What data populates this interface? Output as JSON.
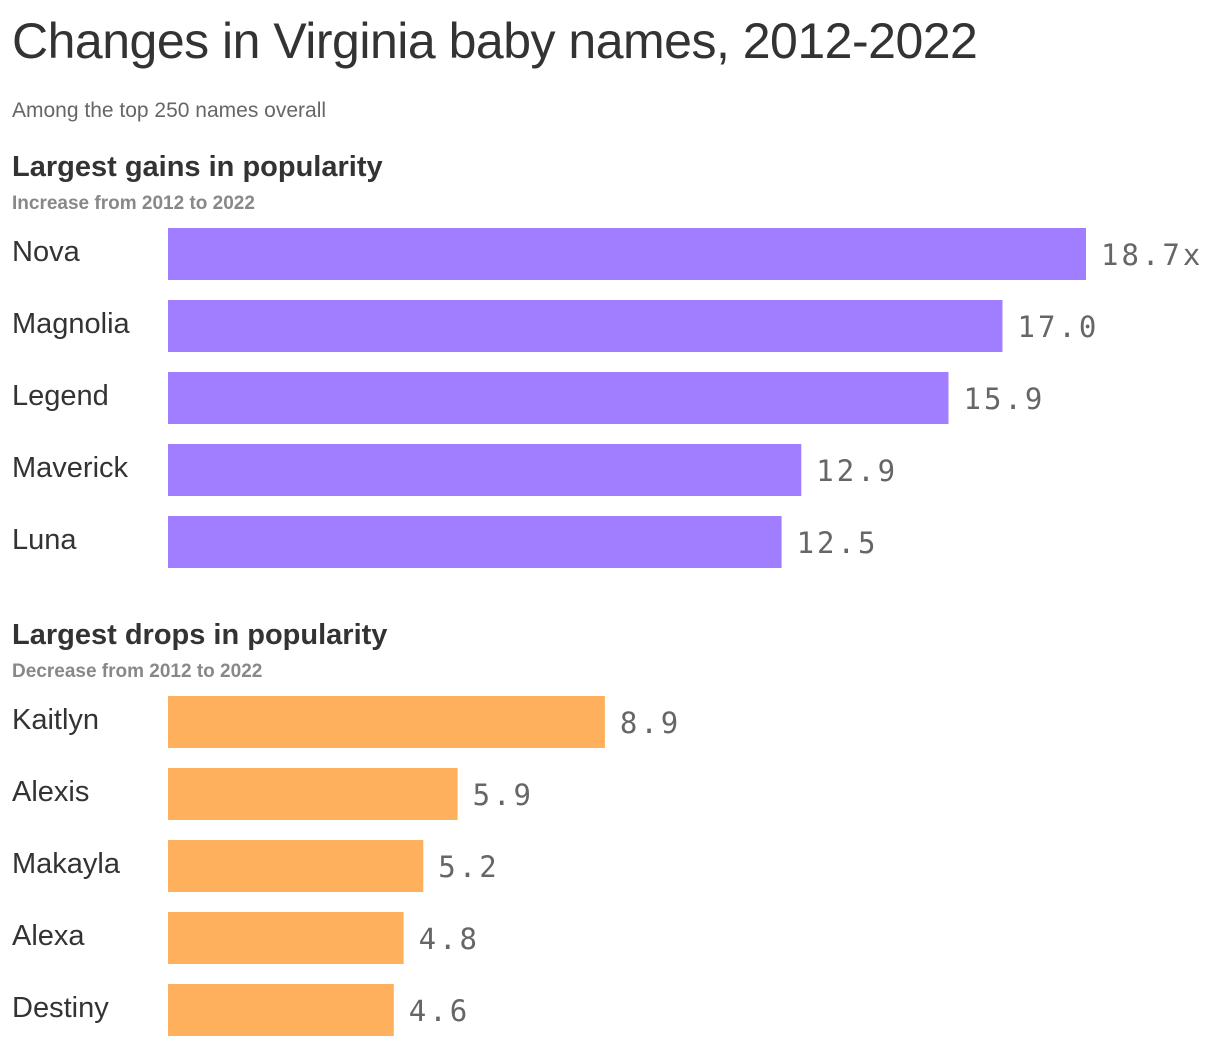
{
  "header": {
    "title": "Changes in Virginia baby names, 2012-2022",
    "subtitle": "Among the top 250 names overall"
  },
  "chart_data": [
    {
      "type": "bar",
      "orientation": "horizontal",
      "title": "Largest gains in popularity",
      "subtitle": "Increase from 2012 to 2022",
      "categories": [
        "Nova",
        "Magnolia",
        "Legend",
        "Maverick",
        "Luna"
      ],
      "values": [
        18.7,
        17.0,
        15.9,
        12.9,
        12.5
      ],
      "value_labels": [
        "18.7x",
        "17.0",
        "15.9",
        "12.9",
        "12.5"
      ],
      "xlim": [
        0,
        18.7
      ],
      "color": "#a07eff",
      "grid": false
    },
    {
      "type": "bar",
      "orientation": "horizontal",
      "title": "Largest drops in popularity",
      "subtitle": "Decrease from 2012 to 2022",
      "categories": [
        "Kaitlyn",
        "Alexis",
        "Makayla",
        "Alexa",
        "Destiny"
      ],
      "values": [
        8.9,
        5.9,
        5.2,
        4.8,
        4.6
      ],
      "value_labels": [
        "8.9",
        "5.9",
        "5.2",
        "4.8",
        "4.6"
      ],
      "xlim": [
        0,
        18.7
      ],
      "color": "#ffb05c",
      "grid": false
    }
  ]
}
